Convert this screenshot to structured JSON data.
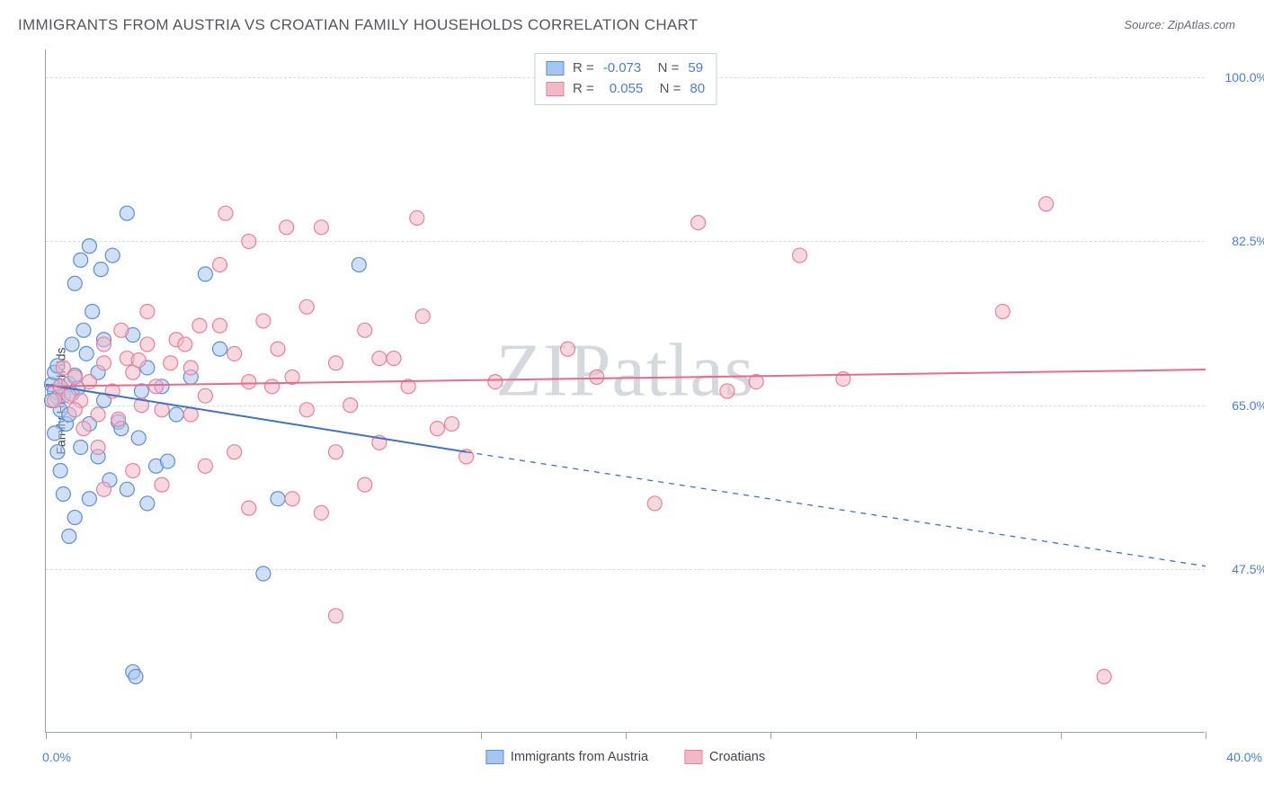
{
  "title": "IMMIGRANTS FROM AUSTRIA VS CROATIAN FAMILY HOUSEHOLDS CORRELATION CHART",
  "source": "Source: ZipAtlas.com",
  "watermark": "ZIPatlas",
  "chart": {
    "type": "scatter",
    "ylabel": "Family Households",
    "xlim": [
      0,
      40
    ],
    "ylim": [
      30,
      103
    ],
    "x_axis_label_left": "0.0%",
    "x_axis_label_right": "40.0%",
    "x_ticks": [
      0,
      5,
      10,
      15,
      20,
      25,
      30,
      35,
      40
    ],
    "y_gridlines": [
      {
        "value": 47.5,
        "label": "47.5%"
      },
      {
        "value": 65.0,
        "label": "65.0%"
      },
      {
        "value": 82.5,
        "label": "82.5%"
      },
      {
        "value": 100.0,
        "label": "100.0%"
      }
    ],
    "background_color": "#ffffff",
    "grid_color": "#d7dbe0",
    "axis_color": "#9aa1ac",
    "text_color": "#555560",
    "value_color": "#4a7fd8",
    "marker_radius": 8,
    "marker_opacity": 0.55,
    "line_width": 2,
    "series": [
      {
        "name": "Immigrants from Austria",
        "fill": "#a7c6ef",
        "stroke": "#5b8fd6",
        "line_color": "#3f72c4",
        "R": "-0.073",
        "N": "59",
        "trend_solid": {
          "x1": 0,
          "y1": 67.2,
          "x2": 14.5,
          "y2": 60.0
        },
        "trend_dashed": {
          "x1": 14.5,
          "y1": 60.0,
          "x2": 40,
          "y2": 47.8
        },
        "points": [
          [
            0.2,
            67.2
          ],
          [
            0.3,
            66.5
          ],
          [
            0.4,
            65.8
          ],
          [
            0.5,
            67.0
          ],
          [
            0.3,
            68.5
          ],
          [
            0.6,
            66.0
          ],
          [
            0.5,
            64.5
          ],
          [
            0.8,
            67.3
          ],
          [
            0.4,
            69.2
          ],
          [
            0.7,
            63.0
          ],
          [
            0.9,
            66.2
          ],
          [
            0.3,
            62.0
          ],
          [
            1.0,
            68.2
          ],
          [
            1.3,
            73.0
          ],
          [
            1.4,
            70.5
          ],
          [
            1.6,
            75.0
          ],
          [
            1.0,
            78.0
          ],
          [
            1.9,
            79.5
          ],
          [
            1.2,
            80.5
          ],
          [
            2.3,
            81.0
          ],
          [
            2.8,
            85.5
          ],
          [
            1.5,
            82.0
          ],
          [
            3.0,
            72.5
          ],
          [
            3.5,
            69.0
          ],
          [
            2.0,
            65.5
          ],
          [
            2.5,
            63.2
          ],
          [
            3.2,
            61.5
          ],
          [
            1.8,
            59.5
          ],
          [
            2.2,
            57.0
          ],
          [
            3.8,
            58.5
          ],
          [
            2.8,
            56.0
          ],
          [
            1.5,
            55.0
          ],
          [
            1.0,
            53.0
          ],
          [
            0.8,
            51.0
          ],
          [
            3.5,
            54.5
          ],
          [
            4.5,
            64.0
          ],
          [
            5.0,
            68.0
          ],
          [
            5.5,
            79.0
          ],
          [
            6.0,
            71.0
          ],
          [
            4.0,
            67.0
          ],
          [
            1.8,
            68.5
          ],
          [
            2.6,
            62.5
          ],
          [
            1.2,
            60.5
          ],
          [
            1.5,
            63.0
          ],
          [
            2.0,
            72.0
          ],
          [
            0.9,
            71.5
          ],
          [
            3.3,
            66.5
          ],
          [
            0.6,
            55.5
          ],
          [
            7.5,
            47.0
          ],
          [
            3.0,
            36.5
          ],
          [
            3.1,
            36.0
          ],
          [
            4.2,
            59.0
          ],
          [
            10.8,
            80.0
          ],
          [
            8.0,
            55.0
          ],
          [
            0.4,
            60.0
          ],
          [
            0.5,
            58.0
          ],
          [
            0.8,
            64.0
          ],
          [
            1.1,
            66.8
          ],
          [
            0.2,
            65.5
          ]
        ]
      },
      {
        "name": "Croatians",
        "fill": "#f3b8c6",
        "stroke": "#e8829c",
        "line_color": "#e86b8a",
        "R": "0.055",
        "N": "80",
        "trend_solid": {
          "x1": 0,
          "y1": 67.0,
          "x2": 40,
          "y2": 68.8
        },
        "trend_dashed": null,
        "points": [
          [
            0.5,
            67.0
          ],
          [
            0.8,
            66.0
          ],
          [
            1.0,
            68.0
          ],
          [
            1.2,
            65.5
          ],
          [
            1.5,
            67.5
          ],
          [
            1.8,
            64.0
          ],
          [
            2.0,
            69.5
          ],
          [
            2.3,
            66.5
          ],
          [
            2.5,
            63.5
          ],
          [
            2.8,
            70.0
          ],
          [
            3.0,
            68.5
          ],
          [
            3.3,
            65.0
          ],
          [
            3.5,
            71.5
          ],
          [
            3.8,
            67.0
          ],
          [
            4.0,
            64.5
          ],
          [
            4.5,
            72.0
          ],
          [
            5.0,
            69.0
          ],
          [
            5.5,
            66.0
          ],
          [
            6.0,
            73.5
          ],
          [
            6.5,
            70.5
          ],
          [
            7.0,
            67.5
          ],
          [
            7.5,
            74.0
          ],
          [
            8.0,
            71.0
          ],
          [
            8.5,
            68.0
          ],
          [
            9.0,
            75.5
          ],
          [
            9.5,
            84.0
          ],
          [
            10.0,
            69.5
          ],
          [
            10.5,
            65.0
          ],
          [
            11.0,
            73.0
          ],
          [
            11.5,
            61.0
          ],
          [
            12.0,
            70.0
          ],
          [
            12.5,
            67.0
          ],
          [
            13.0,
            74.5
          ],
          [
            13.5,
            62.5
          ],
          [
            6.0,
            80.0
          ],
          [
            7.0,
            82.5
          ],
          [
            2.0,
            71.5
          ],
          [
            3.5,
            75.0
          ],
          [
            4.3,
            69.5
          ],
          [
            5.0,
            64.0
          ],
          [
            6.2,
            85.5
          ],
          [
            8.3,
            84.0
          ],
          [
            10.0,
            60.0
          ],
          [
            11.0,
            56.5
          ],
          [
            8.5,
            55.0
          ],
          [
            9.5,
            53.5
          ],
          [
            7.0,
            54.0
          ],
          [
            14.0,
            63.0
          ],
          [
            14.5,
            59.5
          ],
          [
            18.0,
            71.0
          ],
          [
            19.0,
            68.0
          ],
          [
            22.5,
            84.5
          ],
          [
            23.5,
            66.5
          ],
          [
            24.5,
            67.5
          ],
          [
            26.0,
            81.0
          ],
          [
            27.5,
            67.8
          ],
          [
            21.0,
            54.5
          ],
          [
            33.0,
            75.0
          ],
          [
            34.5,
            86.5
          ],
          [
            36.5,
            36.0
          ],
          [
            4.8,
            71.5
          ],
          [
            3.2,
            69.8
          ],
          [
            2.6,
            73.0
          ],
          [
            10.0,
            42.5
          ],
          [
            12.8,
            85.0
          ],
          [
            1.3,
            62.5
          ],
          [
            1.8,
            60.5
          ],
          [
            3.0,
            58.0
          ],
          [
            4.0,
            56.5
          ],
          [
            5.5,
            58.5
          ],
          [
            6.5,
            60.0
          ],
          [
            2.0,
            56.0
          ],
          [
            15.5,
            67.5
          ],
          [
            7.8,
            67.0
          ],
          [
            9.0,
            64.5
          ],
          [
            5.3,
            73.5
          ],
          [
            11.5,
            70.0
          ],
          [
            1.0,
            64.5
          ],
          [
            0.6,
            69.0
          ],
          [
            0.3,
            65.5
          ]
        ]
      }
    ],
    "legend_bottom": [
      {
        "swatch_fill": "#a7c6ef",
        "swatch_stroke": "#5b8fd6",
        "label": "Immigrants from Austria"
      },
      {
        "swatch_fill": "#f3b8c6",
        "swatch_stroke": "#e8829c",
        "label": "Croatians"
      }
    ]
  }
}
